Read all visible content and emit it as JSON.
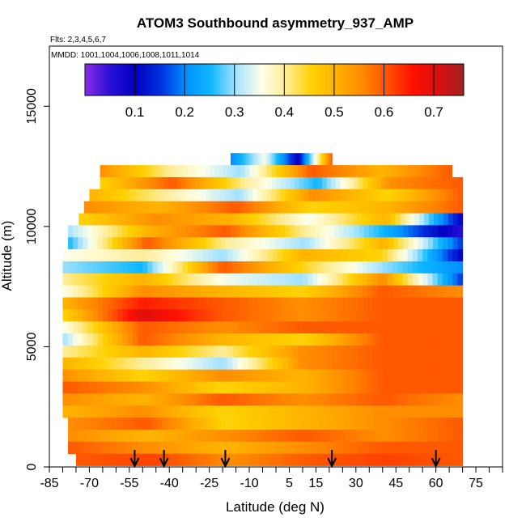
{
  "chart_data": {
    "type": "heatmap",
    "title": "ATOM3 Southbound asymmetry_937_AMP",
    "flights_text": "Flts: 2,3,4,5,6,7",
    "mmdd_text": "MMDD: 1001,1004,1006,1008,1011,1014",
    "xlabel": "Latitude (deg N)",
    "ylabel": "Altitude (m)",
    "xlim": [
      -85,
      85
    ],
    "ylim": [
      0,
      17500
    ],
    "x_ticks": [
      -85,
      -70,
      -55,
      -40,
      -25,
      -10,
      5,
      15,
      30,
      45,
      60,
      75
    ],
    "x_tick_labels": [
      "-85",
      "-70",
      "-55",
      "-40",
      "-25",
      "-10",
      "5",
      "15",
      "30",
      "45",
      "60",
      "75"
    ],
    "y_ticks": [
      0,
      5000,
      10000,
      15000
    ],
    "y_tick_labels": [
      "0",
      "5000",
      "10000",
      "15000"
    ],
    "colorbar": {
      "range": [
        0.0,
        0.76
      ],
      "ticks": [
        0.1,
        0.2,
        0.3,
        0.4,
        0.5,
        0.6,
        0.7
      ],
      "tick_labels": [
        "0.1",
        "0.2",
        "0.3",
        "0.4",
        "0.5",
        "0.6",
        "0.7"
      ],
      "color_stops": [
        "#8a2be2",
        "#2a10d8",
        "#0000c0",
        "#0030e0",
        "#0090ff",
        "#10b8ff",
        "#a8e4ff",
        "#ffffe8",
        "#ffeb90",
        "#ffd000",
        "#ffb000",
        "#ff8800",
        "#ff5000",
        "#ff1000",
        "#d81010",
        "#a02020"
      ]
    },
    "arrow_latitudes": [
      -53,
      -42,
      -19,
      21,
      60
    ],
    "grid": false,
    "altitude_layers": [
      {
        "alt": 12800,
        "lat_range": [
          -17,
          21
        ],
        "values": [
          0.2,
          0.35,
          0.1,
          0.6
        ]
      },
      {
        "alt": 12300,
        "lat_range": [
          -66,
          66
        ],
        "values": [
          0.55,
          0.4,
          0.3,
          0.6,
          0.5,
          0.6
        ]
      },
      {
        "alt": 11800,
        "lat_range": [
          -66,
          70
        ],
        "values": [
          0.45,
          0.6,
          0.4,
          0.25,
          0.55,
          0.6
        ]
      },
      {
        "alt": 11300,
        "lat_range": [
          -70,
          70
        ],
        "values": [
          0.5,
          0.4,
          0.3,
          0.55,
          0.45,
          0.6
        ]
      },
      {
        "alt": 10800,
        "lat_range": [
          -72,
          70
        ],
        "values": [
          0.55,
          0.5,
          0.6,
          0.45,
          0.5,
          0.6
        ]
      },
      {
        "alt": 10300,
        "lat_range": [
          -74,
          70
        ],
        "values": [
          0.45,
          0.55,
          0.5,
          0.35,
          0.5,
          0.1
        ]
      },
      {
        "alt": 9800,
        "lat_range": [
          -78,
          70
        ],
        "values": [
          0.3,
          0.5,
          0.6,
          0.4,
          0.25,
          0.05
        ]
      },
      {
        "alt": 9300,
        "lat_range": [
          -78,
          70
        ],
        "values": [
          0.25,
          0.6,
          0.4,
          0.3,
          0.5,
          0.15
        ]
      },
      {
        "alt": 8800,
        "lat_range": [
          -80,
          70
        ],
        "values": [
          0.35,
          0.4,
          0.3,
          0.5,
          0.45,
          0.1
        ]
      },
      {
        "alt": 8300,
        "lat_range": [
          -80,
          70
        ],
        "values": [
          0.3,
          0.25,
          0.6,
          0.45,
          0.3,
          0.2
        ]
      },
      {
        "alt": 7800,
        "lat_range": [
          -80,
          70
        ],
        "values": [
          0.4,
          0.5,
          0.35,
          0.3,
          0.55,
          0.15
        ]
      },
      {
        "alt": 7300,
        "lat_range": [
          -80,
          70
        ],
        "values": [
          0.35,
          0.55,
          0.5,
          0.45,
          0.6,
          0.55
        ]
      },
      {
        "alt": 6800,
        "lat_range": [
          -80,
          70
        ],
        "values": [
          0.5,
          0.65,
          0.6,
          0.55,
          0.6,
          0.6
        ]
      },
      {
        "alt": 6300,
        "lat_range": [
          -80,
          70
        ],
        "values": [
          0.45,
          0.7,
          0.6,
          0.55,
          0.6,
          0.6
        ]
      },
      {
        "alt": 5800,
        "lat_range": [
          -80,
          70
        ],
        "values": [
          0.35,
          0.6,
          0.55,
          0.6,
          0.6,
          0.6
        ]
      },
      {
        "alt": 5300,
        "lat_range": [
          -80,
          70
        ],
        "values": [
          0.3,
          0.6,
          0.5,
          0.45,
          0.6,
          0.6
        ]
      },
      {
        "alt": 4800,
        "lat_range": [
          -80,
          70
        ],
        "values": [
          0.4,
          0.5,
          0.4,
          0.55,
          0.6,
          0.6
        ]
      },
      {
        "alt": 4300,
        "lat_range": [
          -80,
          70
        ],
        "values": [
          0.5,
          0.4,
          0.3,
          0.55,
          0.6,
          0.6
        ]
      },
      {
        "alt": 3800,
        "lat_range": [
          -80,
          70
        ],
        "values": [
          0.55,
          0.45,
          0.55,
          0.5,
          0.6,
          0.6
        ]
      },
      {
        "alt": 3300,
        "lat_range": [
          -80,
          70
        ],
        "values": [
          0.6,
          0.55,
          0.45,
          0.5,
          0.6,
          0.6
        ]
      },
      {
        "alt": 2800,
        "lat_range": [
          -80,
          70
        ],
        "values": [
          0.55,
          0.5,
          0.6,
          0.55,
          0.6,
          0.55
        ]
      },
      {
        "alt": 2300,
        "lat_range": [
          -80,
          70
        ],
        "values": [
          0.5,
          0.55,
          0.45,
          0.5,
          0.55,
          0.55
        ]
      },
      {
        "alt": 1800,
        "lat_range": [
          -78,
          70
        ],
        "values": [
          0.55,
          0.6,
          0.45,
          0.5,
          0.55,
          0.6
        ]
      },
      {
        "alt": 1300,
        "lat_range": [
          -78,
          70
        ],
        "values": [
          0.55,
          0.5,
          0.55,
          0.6,
          0.55,
          0.6
        ]
      },
      {
        "alt": 800,
        "lat_range": [
          -78,
          70
        ],
        "values": [
          0.6,
          0.55,
          0.5,
          0.55,
          0.6,
          0.6
        ]
      },
      {
        "alt": 300,
        "lat_range": [
          -75,
          70
        ],
        "values": [
          0.6,
          0.62,
          0.55,
          0.6,
          0.62,
          0.6
        ]
      }
    ]
  }
}
